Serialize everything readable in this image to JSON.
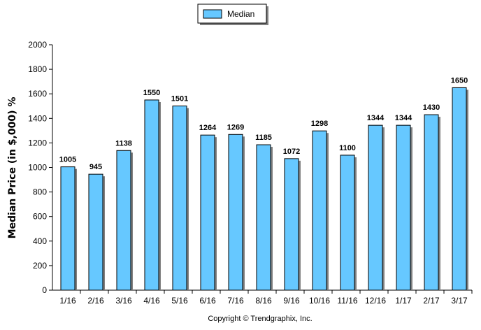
{
  "chart_data": {
    "type": "bar",
    "categories": [
      "1/16",
      "2/16",
      "3/16",
      "4/16",
      "5/16",
      "6/16",
      "7/16",
      "8/16",
      "9/16",
      "10/16",
      "11/16",
      "12/16",
      "1/17",
      "2/17",
      "3/17"
    ],
    "series": [
      {
        "name": "Median",
        "values": [
          1005,
          945,
          1138,
          1550,
          1501,
          1264,
          1269,
          1185,
          1072,
          1298,
          1100,
          1344,
          1344,
          1430,
          1650
        ],
        "color": "#66c8ff"
      }
    ],
    "ylabel": "Median Price (in $,000) %",
    "xlabel": "",
    "ylim": [
      0,
      2000
    ],
    "yticks": [
      0,
      200,
      400,
      600,
      800,
      1000,
      1200,
      1400,
      1600,
      1800,
      2000
    ],
    "grid": false,
    "legend_position": "top-center",
    "data_labels": true
  },
  "footer": {
    "copyright": "Copyright © Trendgraphix, Inc."
  }
}
